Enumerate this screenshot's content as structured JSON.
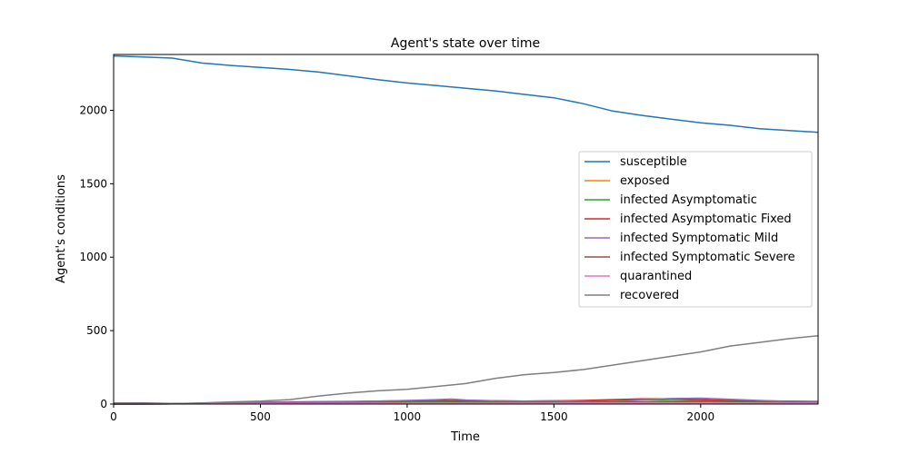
{
  "chart_data": {
    "type": "line",
    "title": "Agent's state over time",
    "xlabel": "Time",
    "ylabel": "Agent's conditions",
    "xlim": [
      0,
      2400
    ],
    "ylim": [
      0,
      2380
    ],
    "xticks": [
      0,
      500,
      1000,
      1500,
      2000
    ],
    "yticks": [
      0,
      500,
      1000,
      1500,
      2000
    ],
    "grid": false,
    "legend_position": "right",
    "series": [
      {
        "name": "susceptible",
        "color": "#1f77b4",
        "points": [
          [
            0,
            2370
          ],
          [
            100,
            2363
          ],
          [
            200,
            2355
          ],
          [
            300,
            2322
          ],
          [
            400,
            2305
          ],
          [
            500,
            2292
          ],
          [
            600,
            2278
          ],
          [
            700,
            2260
          ],
          [
            800,
            2235
          ],
          [
            900,
            2208
          ],
          [
            1000,
            2186
          ],
          [
            1100,
            2168
          ],
          [
            1200,
            2150
          ],
          [
            1300,
            2132
          ],
          [
            1400,
            2108
          ],
          [
            1500,
            2085
          ],
          [
            1600,
            2045
          ],
          [
            1700,
            1995
          ],
          [
            1800,
            1965
          ],
          [
            1900,
            1940
          ],
          [
            2000,
            1915
          ],
          [
            2100,
            1898
          ],
          [
            2200,
            1875
          ],
          [
            2300,
            1862
          ],
          [
            2400,
            1850
          ]
        ]
      },
      {
        "name": "exposed",
        "color": "#ff7f0e",
        "points": [
          [
            0,
            8
          ],
          [
            100,
            5
          ],
          [
            200,
            3
          ],
          [
            300,
            5
          ],
          [
            400,
            8
          ],
          [
            500,
            10
          ],
          [
            600,
            8
          ],
          [
            700,
            10
          ],
          [
            800,
            12
          ],
          [
            900,
            10
          ],
          [
            1000,
            10
          ],
          [
            1100,
            12
          ],
          [
            1200,
            10
          ],
          [
            1300,
            10
          ],
          [
            1400,
            12
          ],
          [
            1500,
            12
          ],
          [
            1600,
            15
          ],
          [
            1700,
            20
          ],
          [
            1800,
            18
          ],
          [
            1900,
            15
          ],
          [
            2000,
            15
          ],
          [
            2100,
            12
          ],
          [
            2200,
            10
          ],
          [
            2300,
            10
          ],
          [
            2400,
            10
          ]
        ]
      },
      {
        "name": "infected Asymptomatic",
        "color": "#2ca02c",
        "points": [
          [
            0,
            6
          ],
          [
            100,
            8
          ],
          [
            200,
            4
          ],
          [
            300,
            6
          ],
          [
            400,
            12
          ],
          [
            500,
            15
          ],
          [
            600,
            12
          ],
          [
            700,
            14
          ],
          [
            800,
            14
          ],
          [
            900,
            15
          ],
          [
            1000,
            14
          ],
          [
            1100,
            16
          ],
          [
            1200,
            15
          ],
          [
            1300,
            14
          ],
          [
            1400,
            15
          ],
          [
            1500,
            16
          ],
          [
            1600,
            20
          ],
          [
            1700,
            28
          ],
          [
            1800,
            30
          ],
          [
            1900,
            25
          ],
          [
            2000,
            22
          ],
          [
            2100,
            20
          ],
          [
            2200,
            18
          ],
          [
            2300,
            16
          ],
          [
            2400,
            14
          ]
        ]
      },
      {
        "name": "infected Asymptomatic Fixed",
        "color": "#d62728",
        "points": [
          [
            0,
            0
          ],
          [
            200,
            2
          ],
          [
            300,
            5
          ],
          [
            400,
            8
          ],
          [
            500,
            12
          ],
          [
            600,
            15
          ],
          [
            700,
            16
          ],
          [
            800,
            18
          ],
          [
            900,
            20
          ],
          [
            1000,
            22
          ],
          [
            1100,
            24
          ],
          [
            1200,
            22
          ],
          [
            1300,
            22
          ],
          [
            1400,
            20
          ],
          [
            1500,
            22
          ],
          [
            1600,
            25
          ],
          [
            1700,
            30
          ],
          [
            1800,
            35
          ],
          [
            1900,
            35
          ],
          [
            2000,
            30
          ],
          [
            2100,
            25
          ],
          [
            2200,
            22
          ],
          [
            2300,
            20
          ],
          [
            2400,
            18
          ]
        ]
      },
      {
        "name": "infected Symptomatic Mild",
        "color": "#9467bd",
        "points": [
          [
            0,
            0
          ],
          [
            200,
            2
          ],
          [
            300,
            6
          ],
          [
            400,
            10
          ],
          [
            500,
            14
          ],
          [
            600,
            12
          ],
          [
            700,
            14
          ],
          [
            800,
            16
          ],
          [
            900,
            20
          ],
          [
            1000,
            25
          ],
          [
            1100,
            30
          ],
          [
            1150,
            34
          ],
          [
            1200,
            28
          ],
          [
            1300,
            22
          ],
          [
            1400,
            20
          ],
          [
            1500,
            22
          ],
          [
            1600,
            18
          ],
          [
            1700,
            15
          ],
          [
            1800,
            30
          ],
          [
            1900,
            38
          ],
          [
            2000,
            40
          ],
          [
            2100,
            32
          ],
          [
            2200,
            25
          ],
          [
            2300,
            18
          ],
          [
            2400,
            15
          ]
        ]
      },
      {
        "name": "infected Symptomatic Severe",
        "color": "#8c564b",
        "points": [
          [
            0,
            0
          ],
          [
            200,
            1
          ],
          [
            300,
            3
          ],
          [
            400,
            5
          ],
          [
            500,
            6
          ],
          [
            600,
            7
          ],
          [
            700,
            8
          ],
          [
            800,
            9
          ],
          [
            900,
            10
          ],
          [
            1000,
            10
          ],
          [
            1100,
            11
          ],
          [
            1200,
            10
          ],
          [
            1300,
            10
          ],
          [
            1400,
            10
          ],
          [
            1500,
            10
          ],
          [
            1600,
            12
          ],
          [
            1700,
            14
          ],
          [
            1800,
            15
          ],
          [
            1900,
            14
          ],
          [
            2000,
            13
          ],
          [
            2100,
            12
          ],
          [
            2200,
            11
          ],
          [
            2300,
            10
          ],
          [
            2400,
            10
          ]
        ]
      },
      {
        "name": "quarantined",
        "color": "#e377c2",
        "points": [
          [
            0,
            0
          ],
          [
            200,
            1
          ],
          [
            400,
            3
          ],
          [
            600,
            4
          ],
          [
            800,
            5
          ],
          [
            1000,
            6
          ],
          [
            1200,
            6
          ],
          [
            1400,
            6
          ],
          [
            1600,
            7
          ],
          [
            1800,
            8
          ],
          [
            2000,
            8
          ],
          [
            2200,
            7
          ],
          [
            2400,
            6
          ]
        ]
      },
      {
        "name": "recovered",
        "color": "#7f7f7f",
        "points": [
          [
            0,
            0
          ],
          [
            100,
            0
          ],
          [
            200,
            2
          ],
          [
            300,
            8
          ],
          [
            400,
            15
          ],
          [
            500,
            20
          ],
          [
            600,
            30
          ],
          [
            700,
            55
          ],
          [
            800,
            75
          ],
          [
            900,
            90
          ],
          [
            1000,
            100
          ],
          [
            1100,
            120
          ],
          [
            1200,
            140
          ],
          [
            1300,
            175
          ],
          [
            1400,
            200
          ],
          [
            1500,
            215
          ],
          [
            1600,
            235
          ],
          [
            1700,
            265
          ],
          [
            1800,
            295
          ],
          [
            1900,
            325
          ],
          [
            2000,
            355
          ],
          [
            2100,
            395
          ],
          [
            2200,
            420
          ],
          [
            2300,
            445
          ],
          [
            2400,
            465
          ]
        ]
      }
    ]
  }
}
